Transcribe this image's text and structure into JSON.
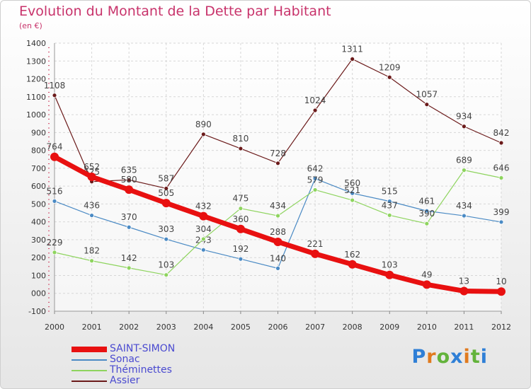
{
  "header": {
    "title": "Evolution du Montant de la Dette par Habitant",
    "unit": "(en €)"
  },
  "logo": {
    "text": "Proxiti",
    "colors": [
      "#2f7fd6",
      "#e07a1e",
      "#63b33b",
      "#2f7fd6",
      "#e07a1e",
      "#63b33b",
      "#2f7fd6"
    ]
  },
  "chart_data": {
    "type": "line",
    "title": "Evolution du Montant de la Dette par Habitant",
    "ylabel": "(en €)",
    "xlabel": "",
    "ylim": [
      -100,
      1400
    ],
    "yticks": [
      -100,
      0,
      100,
      200,
      300,
      400,
      500,
      600,
      700,
      800,
      900,
      1000,
      1100,
      1200,
      1300,
      1400
    ],
    "ytick_labels": [
      "-100",
      "000",
      "100",
      "200",
      "300",
      "400",
      "500",
      "600",
      "700",
      "800",
      "900",
      "1000",
      "1100",
      "1200",
      "1300",
      "1400"
    ],
    "x": [
      "2000",
      "2001",
      "2002",
      "2003",
      "2004",
      "2005",
      "2006",
      "2007",
      "2008",
      "2009",
      "2010",
      "2011",
      "2012"
    ],
    "grid": true,
    "legend_position": "bottom-left",
    "series": [
      {
        "name": "Assier",
        "color": "#6b1a1a",
        "values": [
          1108,
          625,
          635,
          587,
          890,
          810,
          728,
          1024,
          1311,
          1209,
          1057,
          934,
          842
        ]
      },
      {
        "name": "Sonac",
        "color": "#4a8ac4",
        "values": [
          516,
          436,
          370,
          303,
          243,
          192,
          140,
          642,
          560,
          515,
          461,
          434,
          399
        ]
      },
      {
        "name": "Théminettes",
        "color": "#8ed45e",
        "values": [
          229,
          182,
          142,
          103,
          304,
          475,
          434,
          579,
          521,
          437,
          390,
          689,
          646
        ]
      },
      {
        "name": "SAINT-SIMON",
        "color": "#e81010",
        "values": [
          764,
          652,
          580,
          505,
          432,
          360,
          288,
          221,
          162,
          103,
          49,
          13,
          10
        ]
      }
    ],
    "legend": [
      {
        "name": "SAINT-SIMON",
        "color": "#e81010",
        "thickness": 8
      },
      {
        "name": "Sonac",
        "color": "#4a8ac4",
        "thickness": 2
      },
      {
        "name": "Théminettes",
        "color": "#8ed45e",
        "thickness": 2
      },
      {
        "name": "Assier",
        "color": "#6b1a1a",
        "thickness": 2
      }
    ]
  }
}
